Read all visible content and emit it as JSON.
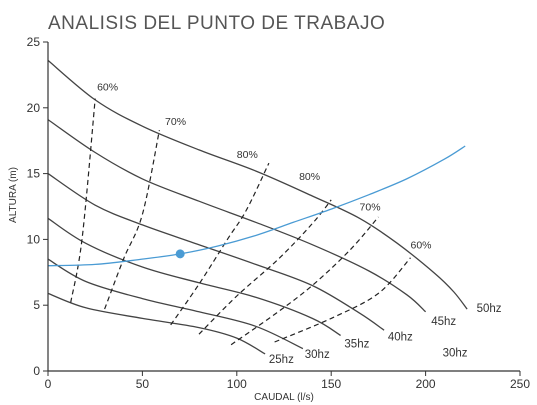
{
  "chart_data": {
    "type": "line",
    "title": "ANALISIS DEL PUNTO DE TRABAJO",
    "xlabel": "CAUDAL (l/s)",
    "ylabel": "ALTURA (m)",
    "xlim": [
      0,
      250
    ],
    "ylim": [
      0,
      25
    ],
    "xticks": [
      "0",
      "50",
      "100",
      "150",
      "200",
      "250"
    ],
    "yticks": [
      "0",
      "5",
      "10",
      "15",
      "20",
      "25"
    ],
    "grid": false,
    "pump_curves": [
      {
        "name": "25hz",
        "points": [
          [
            0,
            5.9
          ],
          [
            20,
            4.8
          ],
          [
            50,
            4.0
          ],
          [
            80,
            3.3
          ],
          [
            100,
            2.5
          ],
          [
            115,
            1.3
          ]
        ]
      },
      {
        "name": "30hz",
        "points": [
          [
            0,
            8.5
          ],
          [
            20,
            6.8
          ],
          [
            50,
            5.5
          ],
          [
            80,
            4.5
          ],
          [
            110,
            3.4
          ],
          [
            135,
            1.7
          ]
        ]
      },
      {
        "name": "35hz",
        "points": [
          [
            0,
            11.6
          ],
          [
            20,
            9.7
          ],
          [
            50,
            7.9
          ],
          [
            80,
            6.7
          ],
          [
            110,
            5.6
          ],
          [
            140,
            4.0
          ],
          [
            155,
            2.7
          ]
        ]
      },
      {
        "name": "40hz",
        "points": [
          [
            0,
            15.0
          ],
          [
            25,
            12.6
          ],
          [
            50,
            11.1
          ],
          [
            80,
            9.6
          ],
          [
            110,
            8.1
          ],
          [
            140,
            6.5
          ],
          [
            165,
            4.4
          ],
          [
            178,
            3.1
          ]
        ]
      },
      {
        "name": "45hz",
        "points": [
          [
            0,
            19.1
          ],
          [
            25,
            16.6
          ],
          [
            50,
            14.6
          ],
          [
            80,
            12.9
          ],
          [
            110,
            11.3
          ],
          [
            140,
            9.6
          ],
          [
            170,
            7.6
          ],
          [
            190,
            5.8
          ],
          [
            200,
            4.5
          ]
        ]
      },
      {
        "name": "50hz",
        "points": [
          [
            0,
            23.6
          ],
          [
            25,
            20.6
          ],
          [
            50,
            18.6
          ],
          [
            80,
            16.8
          ],
          [
            110,
            15.2
          ],
          [
            140,
            13.3
          ],
          [
            165,
            11.6
          ],
          [
            185,
            9.7
          ],
          [
            205,
            7.4
          ],
          [
            215,
            6.0
          ],
          [
            222,
            4.7
          ]
        ]
      }
    ],
    "efficiency_curves": [
      {
        "name": "60%",
        "points": [
          [
            12,
            5.2
          ],
          [
            18,
            10.0
          ],
          [
            25,
            20.7
          ]
        ],
        "label_at": [
          26,
          21.3
        ]
      },
      {
        "name": "70%",
        "points": [
          [
            30,
            4.7
          ],
          [
            40,
            8.5
          ],
          [
            50,
            11.9
          ],
          [
            59,
            18.3
          ]
        ],
        "label_at": [
          62,
          18.7
        ]
      },
      {
        "name": "80%",
        "points": [
          [
            65,
            3.5
          ],
          [
            80,
            6.6
          ],
          [
            95,
            10.0
          ],
          [
            105,
            12.2
          ],
          [
            117,
            15.8
          ]
        ],
        "label_at": [
          100,
          16.2
        ]
      },
      {
        "name": "80%",
        "points": [
          [
            80,
            2.8
          ],
          [
            100,
            5.7
          ],
          [
            122,
            8.5
          ],
          [
            140,
            11.2
          ],
          [
            150,
            13.0
          ]
        ],
        "label_at": [
          133,
          14.5
        ]
      },
      {
        "name": "70%",
        "points": [
          [
            97,
            2.0
          ],
          [
            120,
            4.3
          ],
          [
            140,
            6.5
          ],
          [
            160,
            9.2
          ],
          [
            175,
            11.7
          ]
        ],
        "label_at": [
          165,
          12.2
        ]
      },
      {
        "name": "60%",
        "points": [
          [
            120,
            2.2
          ],
          [
            150,
            4.0
          ],
          [
            175,
            5.9
          ],
          [
            192,
            8.6
          ]
        ],
        "label_at": [
          192,
          9.3
        ]
      }
    ],
    "system_curve": {
      "points": [
        [
          0,
          8.0
        ],
        [
          25,
          8.1
        ],
        [
          50,
          8.5
        ],
        [
          70,
          8.9
        ],
        [
          90,
          9.5
        ],
        [
          110,
          10.3
        ],
        [
          130,
          11.3
        ],
        [
          150,
          12.3
        ],
        [
          170,
          13.4
        ],
        [
          190,
          14.6
        ],
        [
          210,
          16.1
        ],
        [
          221,
          17.1
        ]
      ]
    },
    "operating_point": [
      70,
      8.9
    ],
    "curve_labels": [
      {
        "text": "25hz",
        "at": [
          117,
          0.6
        ]
      },
      {
        "text": "30hz",
        "at": [
          136,
          1.0
        ]
      },
      {
        "text": "35hz",
        "at": [
          157,
          1.8
        ]
      },
      {
        "text": "40hz",
        "at": [
          180,
          2.3
        ]
      },
      {
        "text": "45hz",
        "at": [
          203,
          3.5
        ]
      },
      {
        "text": "50hz",
        "at": [
          227,
          4.5
        ]
      },
      {
        "text": "30hz",
        "at": [
          209,
          1.1
        ]
      }
    ],
    "colors": {
      "pump_curve": "#444444",
      "system_curve": "#4a9bd4",
      "operating_point": "#4a9bd4"
    }
  }
}
